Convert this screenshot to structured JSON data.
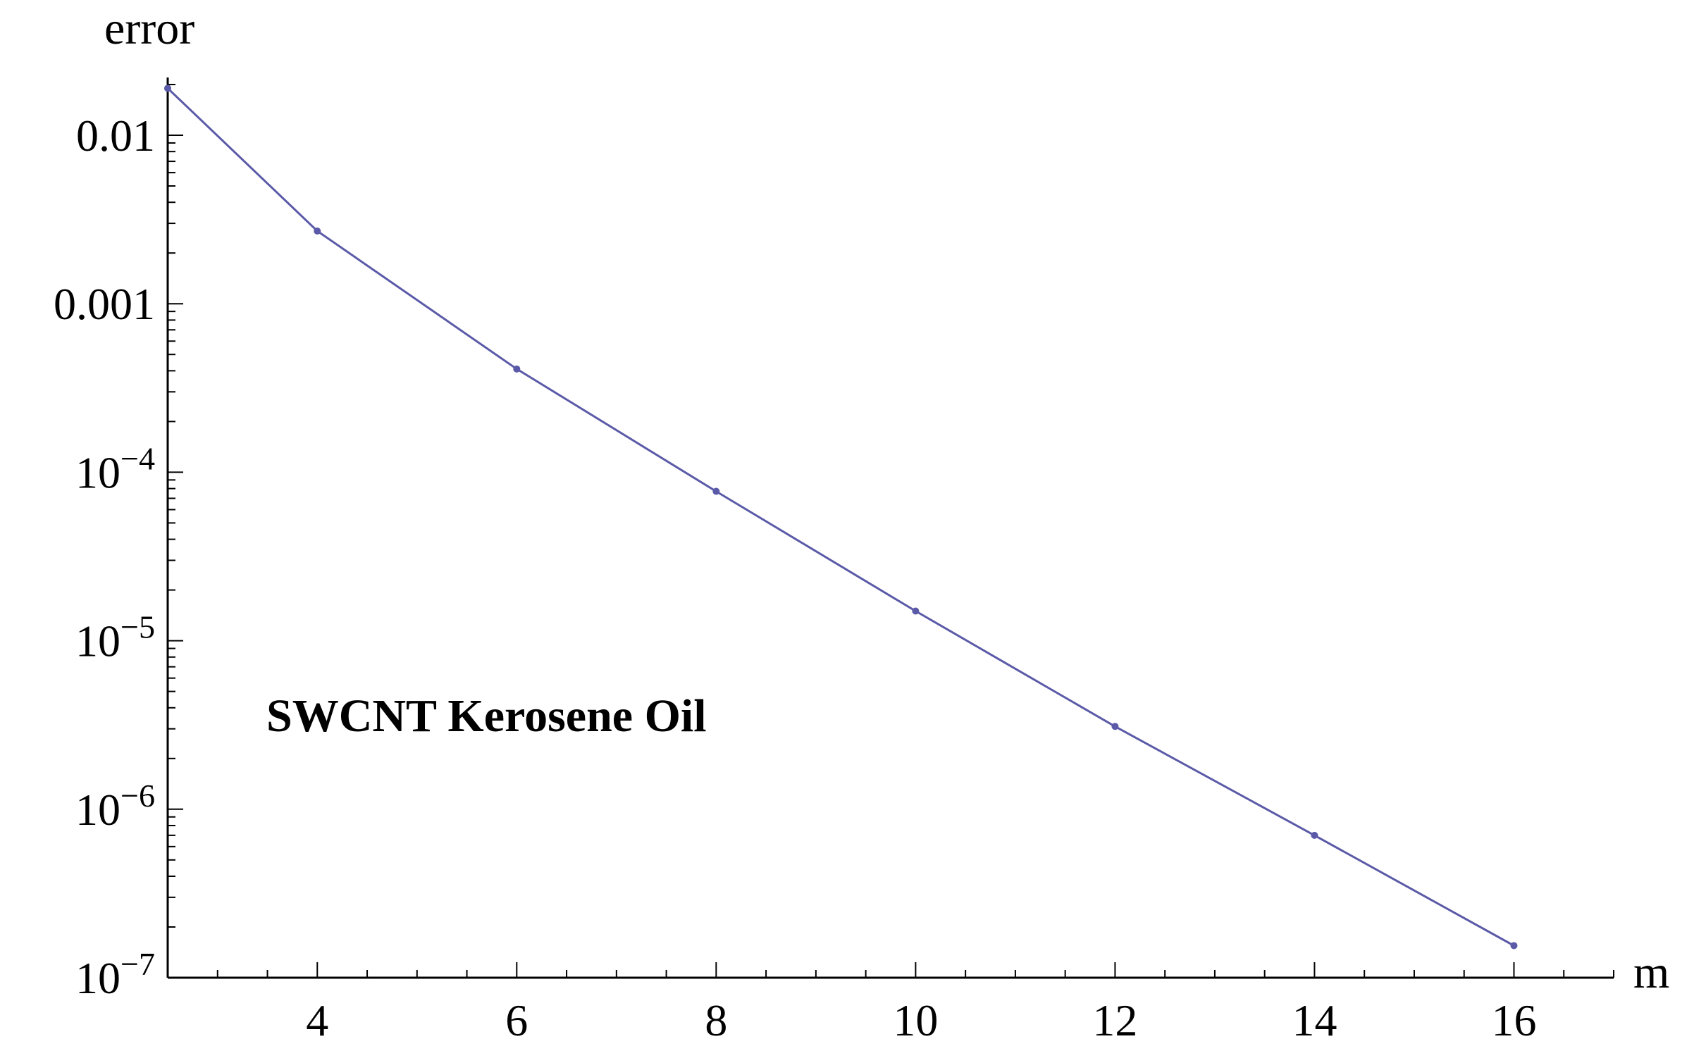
{
  "chart_data": {
    "type": "line",
    "xlabel": "m",
    "ylabel": "error",
    "y_scale": "log",
    "xlim": [
      2.5,
      17
    ],
    "ylim": [
      1e-07,
      0.02
    ],
    "x_ticks": {
      "major": [
        4,
        6,
        8,
        10,
        12,
        14,
        16
      ],
      "labels": [
        "4",
        "6",
        "8",
        "10",
        "12",
        "14",
        "16"
      ]
    },
    "y_ticks": [
      {
        "value": 0.01,
        "base": "0.01",
        "exp": ""
      },
      {
        "value": 0.001,
        "base": "0.001",
        "exp": ""
      },
      {
        "value": 0.0001,
        "base": "10",
        "exp": "−4"
      },
      {
        "value": 1e-05,
        "base": "10",
        "exp": "−5"
      },
      {
        "value": 1e-06,
        "base": "10",
        "exp": "−6"
      },
      {
        "value": 1e-07,
        "base": "10",
        "exp": "−7"
      }
    ],
    "annotation": "SWCNT Kerosene Oil",
    "series": [
      {
        "color": "#5a5aa8",
        "x": [
          2.5,
          4,
          6,
          8,
          10,
          12,
          14,
          16
        ],
        "y": [
          0.019,
          0.0027,
          0.00041,
          7.7e-05,
          1.5e-05,
          3.1e-06,
          7e-07,
          1.55e-07
        ]
      }
    ]
  }
}
